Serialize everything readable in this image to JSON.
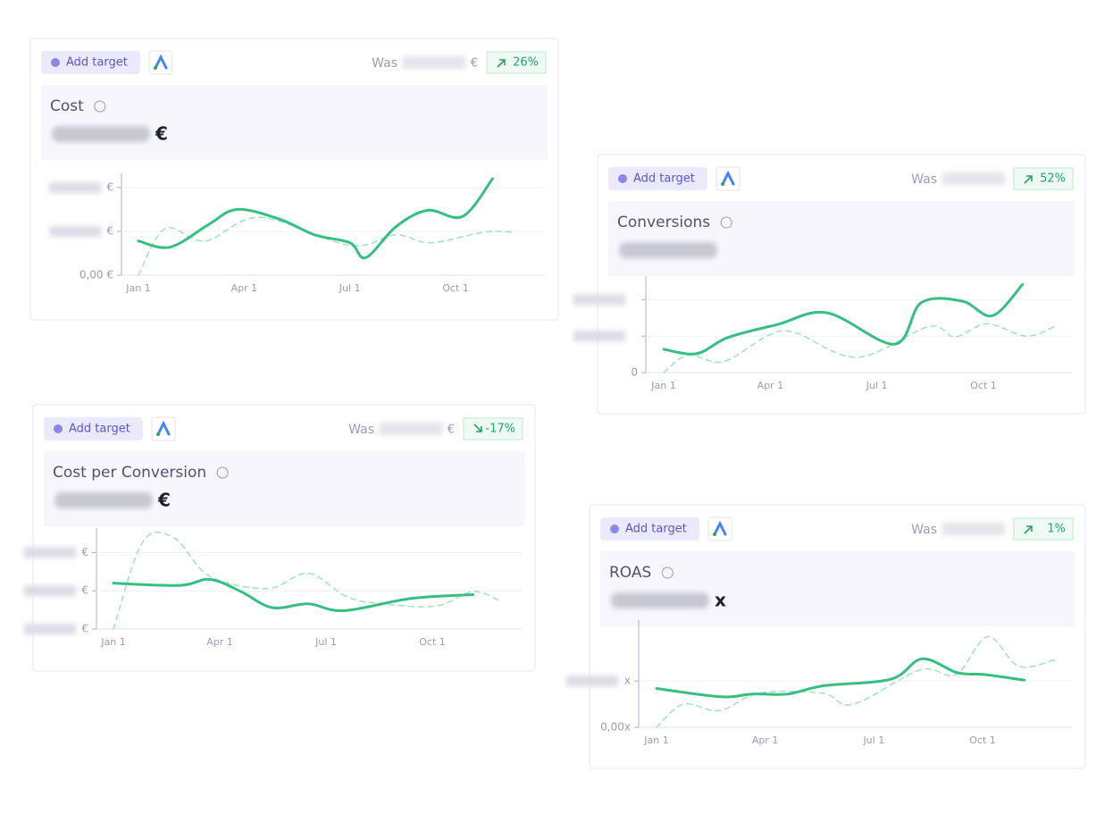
{
  "xticks": [
    {
      "value": 0,
      "label": "Jan 1"
    },
    {
      "value": 3,
      "label": "Apr 1"
    },
    {
      "value": 6,
      "label": "Jul 1"
    },
    {
      "value": 9,
      "label": "Oct 1"
    }
  ],
  "cards": [
    {
      "button": "Add target",
      "was": "Was",
      "was_unit": "€",
      "change": "26%",
      "trend": "up",
      "title": "Cost",
      "unit": "€",
      "ylim": [
        0,
        110
      ],
      "yticks": [
        0,
        50,
        100
      ],
      "zero_label": "0,00 €",
      "tick_unit": "€",
      "current": {
        "x": [
          0,
          0.9,
          2,
          2.8,
          4,
          5,
          6,
          6.45,
          7.3,
          8.2,
          9.2,
          10.05
        ],
        "y": [
          39,
          32,
          58,
          75,
          64,
          46,
          37,
          20,
          55,
          74,
          67,
          110
        ]
      },
      "previous": {
        "x": [
          0,
          0.75,
          1.9,
          3.45,
          6,
          7.3,
          8.3,
          9.8,
          10.7
        ],
        "y": [
          0,
          53,
          39,
          66,
          34,
          46,
          37,
          49,
          49
        ]
      }
    },
    {
      "button": "Add target",
      "was": "Was",
      "change": "52%",
      "trend": "up",
      "title": "Conversions",
      "ylim": [
        0,
        125
      ],
      "yticks": [
        0,
        50,
        100
      ],
      "zero_label": "0",
      "current": {
        "x": [
          0,
          0.93,
          1.8,
          3.2,
          4.6,
          6.5,
          7.25,
          8.4,
          9.25,
          10.1
        ],
        "y": [
          32,
          26,
          48,
          66,
          82,
          39,
          96,
          98,
          78,
          121
        ]
      },
      "previous": {
        "x": [
          0,
          0.68,
          1.68,
          2.94,
          3.69,
          5.45,
          7.46,
          8.2,
          9.1,
          10.2,
          11.0
        ],
        "y": [
          0,
          24,
          15,
          51,
          55,
          21,
          63,
          49,
          67,
          50,
          63
        ]
      }
    },
    {
      "button": "Add target",
      "was": "Was",
      "was_unit": "€",
      "change": "-17%",
      "trend": "down",
      "title": "Cost per Conversion",
      "unit": "€",
      "ylim": [
        0,
        125
      ],
      "yticks": [
        0,
        50,
        100
      ],
      "tick_unit": "€",
      "current": {
        "x": [
          0,
          1.86,
          2.72,
          3.6,
          4.48,
          5.5,
          6.5,
          8.4,
          10.15
        ],
        "y": [
          60,
          57,
          65,
          49,
          28,
          33,
          24,
          40,
          45
        ]
      },
      "previous": {
        "x": [
          0,
          0.83,
          1.71,
          2.72,
          4.36,
          5.49,
          6.6,
          7.6,
          9.1,
          10.15,
          10.9
        ],
        "y": [
          0,
          114,
          119,
          69,
          53,
          73,
          42,
          33,
          30,
          49,
          37
        ]
      }
    },
    {
      "button": "Add target",
      "was": "Was",
      "change": "1%",
      "trend": "up",
      "title": "ROAS",
      "unit": "x",
      "ylim": [
        0,
        110
      ],
      "yticks": [
        0,
        50
      ],
      "zero_label": "0,00x",
      "tick_unit": "x",
      "current": {
        "x": [
          0,
          1.78,
          2.64,
          3.63,
          4.62,
          6.47,
          7.33,
          8.3,
          9.04,
          10.15
        ],
        "y": [
          42,
          33,
          36,
          36,
          45,
          52,
          74,
          59,
          57,
          51
        ]
      },
      "previous": {
        "x": [
          0,
          0.74,
          1.73,
          2.84,
          4.57,
          5.43,
          7.28,
          8.27,
          9.14,
          10.0,
          11.0
        ],
        "y": [
          0,
          25,
          18,
          37,
          37,
          25,
          62,
          57,
          98,
          66,
          73
        ]
      }
    }
  ]
}
